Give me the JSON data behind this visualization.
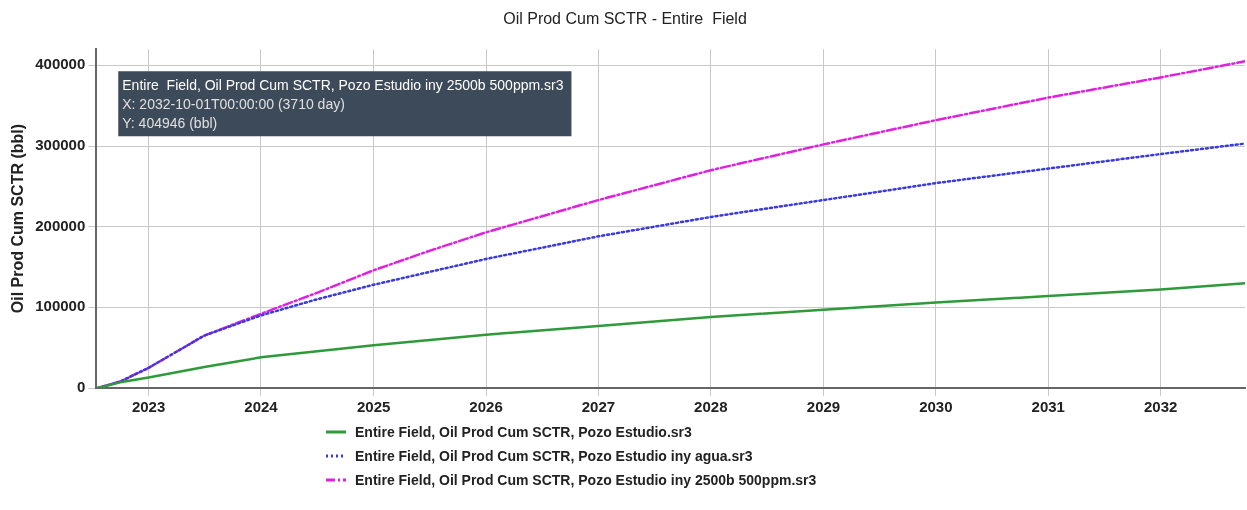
{
  "chart_data": {
    "type": "line",
    "title": "Oil Prod Cum SCTR - Entire  Field",
    "ylabel": "Oil Prod Cum SCTR (bbl)",
    "xlim": [
      "2022-07-15",
      "2032-10-01"
    ],
    "ylim": [
      0,
      420000
    ],
    "xticks": [
      {
        "value": "2023-01-01",
        "label": "2023"
      },
      {
        "value": "2024-01-01",
        "label": "2024"
      },
      {
        "value": "2025-01-01",
        "label": "2025"
      },
      {
        "value": "2026-01-01",
        "label": "2026"
      },
      {
        "value": "2027-01-01",
        "label": "2027"
      },
      {
        "value": "2028-01-01",
        "label": "2028"
      },
      {
        "value": "2029-01-01",
        "label": "2029"
      },
      {
        "value": "2030-01-01",
        "label": "2030"
      },
      {
        "value": "2031-01-01",
        "label": "2031"
      },
      {
        "value": "2032-01-01",
        "label": "2032"
      }
    ],
    "yticks": [
      0,
      100000,
      200000,
      300000,
      400000
    ],
    "grid": true,
    "legend": "bottom",
    "marker": "none",
    "annotations": [
      "Entire  Field, Oil Prod Cum SCTR, Pozo Estudio iny 2500b 500ppm.sr3",
      "X: 2032-10-01T00:00:00 (3710 day)",
      "Y: 404946 (bbl)"
    ],
    "series": [
      {
        "name": "Entire  Field, Oil Prod Cum SCTR, Pozo Estudio.sr3",
        "color": "#2e9a3a",
        "line_style": "solid",
        "x": [
          "2022-07-20",
          "2022-10-01",
          "2023-01-01",
          "2023-07-01",
          "2024-01-01",
          "2025-01-01",
          "2026-01-01",
          "2027-01-01",
          "2028-01-01",
          "2029-01-01",
          "2030-01-01",
          "2031-01-01",
          "2032-01-01",
          "2032-10-01"
        ],
        "values": [
          0,
          7000,
          13000,
          26000,
          38000,
          53000,
          66000,
          77000,
          88000,
          97000,
          106000,
          114000,
          122000,
          130000
        ]
      },
      {
        "name": "Entire  Field, Oil Prod Cum SCTR, Pozo Estudio iny agua.sr3",
        "color": "#3a3ae0",
        "line_style": "dotted",
        "x": [
          "2022-07-20",
          "2022-10-01",
          "2023-01-01",
          "2023-07-01",
          "2024-01-01",
          "2024-07-01",
          "2025-01-01",
          "2026-01-01",
          "2027-01-01",
          "2028-01-01",
          "2029-01-01",
          "2030-01-01",
          "2031-01-01",
          "2032-01-01",
          "2032-10-01"
        ],
        "values": [
          0,
          8000,
          25000,
          65000,
          90000,
          110000,
          128000,
          160000,
          188000,
          212000,
          233000,
          254000,
          272000,
          290000,
          303000
        ]
      },
      {
        "name": "Entire  Field, Oil Prod Cum SCTR, Pozo Estudio iny 2500b 500ppm.sr3",
        "color": "#e020e0",
        "line_style": "dashed",
        "x": [
          "2022-07-20",
          "2022-10-01",
          "2023-01-01",
          "2023-07-01",
          "2024-01-01",
          "2024-07-01",
          "2025-01-01",
          "2025-07-01",
          "2026-01-01",
          "2027-01-01",
          "2028-01-01",
          "2029-01-01",
          "2030-01-01",
          "2031-01-01",
          "2032-01-01",
          "2032-10-01"
        ],
        "values": [
          0,
          8000,
          25000,
          65000,
          92000,
          118000,
          146000,
          170000,
          193000,
          233000,
          270000,
          302000,
          332000,
          360000,
          385000,
          404946
        ]
      }
    ]
  }
}
